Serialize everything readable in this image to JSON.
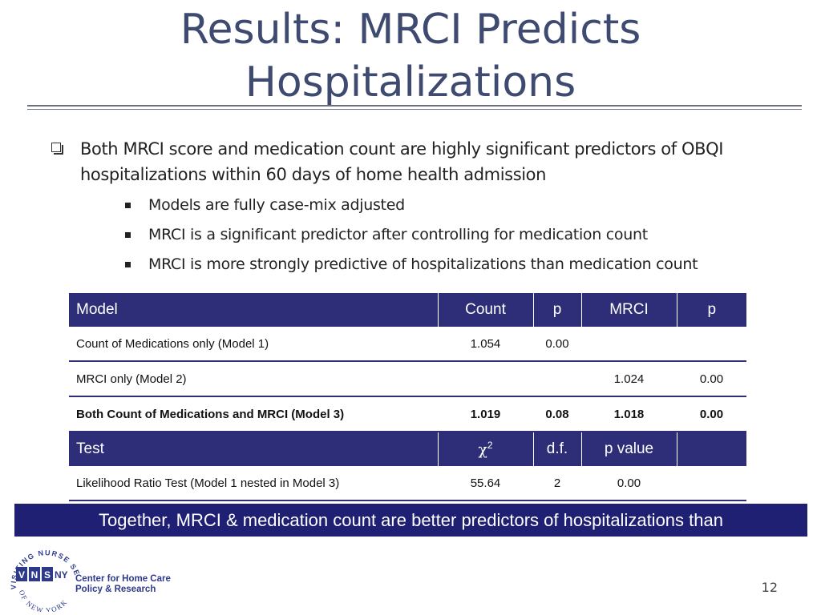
{
  "slide": {
    "title_line1": "Results: MRCI Predicts",
    "title_line2": "Hospitalizations",
    "page_number": "12"
  },
  "bullets": {
    "main": "Both MRCI score and medication count are highly significant predictors of OBQI hospitalizations within 60 days of home health admission",
    "sub": [
      "Models are fully case-mix adjusted",
      "MRCI is a significant predictor after controlling for medication count",
      "MRCI is more strongly predictive of hospitalizations than medication count"
    ]
  },
  "table": {
    "header1": [
      "Model",
      "Count",
      "p",
      "MRCI",
      "p"
    ],
    "rows": [
      [
        "Count of Medications only (Model 1)",
        "1.054",
        "0.00",
        "",
        ""
      ],
      [
        "MRCI only (Model 2)",
        "",
        "",
        "1.024",
        "0.00"
      ],
      [
        "Both Count of Medications and MRCI (Model 3)",
        "1.019",
        "0.08",
        "1.018",
        "0.00"
      ]
    ],
    "header2": [
      "Test",
      "χ2",
      "d.f.",
      "p value",
      ""
    ],
    "test_row": [
      "Likelihood Ratio Test (Model 1 nested in Model 3)",
      "55.64",
      "2",
      "0.00",
      ""
    ]
  },
  "banner": {
    "text": "Together, MRCI & medication count are better predictors of hospitalizations than"
  },
  "logo": {
    "arc_text": "VISITING NURSE SERVICE",
    "bottom_text": "OF NEW YORK",
    "letters": [
      "V",
      "N",
      "S",
      "NY"
    ],
    "org_line1": "Center for Home Care",
    "org_line2": "Policy & Research",
    "brand_color": "#2d3a8c"
  },
  "colors": {
    "title": "#3f4a70",
    "table_header": "#2d2d78",
    "banner": "#1f1f74"
  }
}
